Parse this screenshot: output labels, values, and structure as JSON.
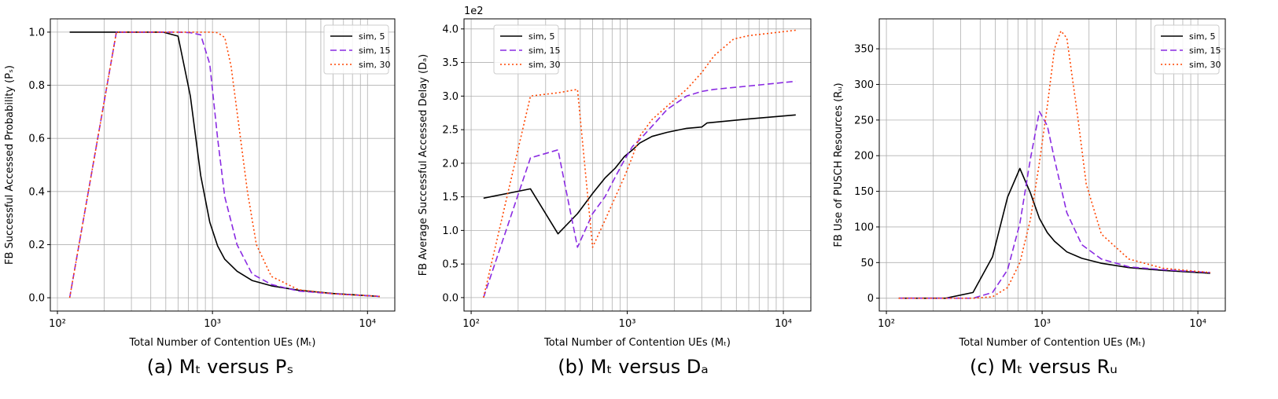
{
  "x_axis_label": "Total Number of Contention UEs (Mₜ)",
  "series_styles": {
    "sim, 5": {
      "color": "#000000",
      "dash": ""
    },
    "sim, 15": {
      "color": "#8a2be2",
      "dash": "8,4"
    },
    "sim, 30": {
      "color": "#ff4500",
      "dash": "2,3"
    }
  },
  "chart_data": [
    {
      "type": "line",
      "caption": "(a) Mₜ versus Pₛ",
      "xlabel": "Total Number of Contention UEs (Mₜ)",
      "ylabel": "FB Successful Accessed Probability (Pₛ)",
      "xscale": "log",
      "xlim": [
        90,
        15000
      ],
      "ylim": [
        -0.05,
        1.05
      ],
      "yticks": [
        0.0,
        0.2,
        0.4,
        0.6,
        0.8,
        1.0
      ],
      "ytick_labels": [
        "0.0",
        "0.2",
        "0.4",
        "0.6",
        "0.8",
        "1.0"
      ],
      "xtick_labels": [
        "10²",
        "10³",
        "10⁴"
      ],
      "legend_loc": "top-right",
      "grid": true,
      "series": [
        {
          "name": "sim, 5",
          "x": [
            120,
            240,
            360,
            480,
            600,
            720,
            840,
            960,
            1080,
            1200,
            1440,
            1800,
            2400,
            3600,
            6000,
            12000
          ],
          "y": [
            1.0,
            1.0,
            1.0,
            1.0,
            0.985,
            0.76,
            0.46,
            0.285,
            0.195,
            0.145,
            0.1,
            0.065,
            0.045,
            0.028,
            0.016,
            0.005
          ]
        },
        {
          "name": "sim, 15",
          "x": [
            120,
            240,
            360,
            480,
            600,
            720,
            840,
            960,
            1080,
            1200,
            1440,
            1800,
            2400,
            3600,
            6000,
            12000
          ],
          "y": [
            0.0,
            1.0,
            1.0,
            1.0,
            1.0,
            0.998,
            0.99,
            0.88,
            0.6,
            0.38,
            0.2,
            0.09,
            0.05,
            0.025,
            0.015,
            0.005
          ]
        },
        {
          "name": "sim, 30",
          "x": [
            120,
            240,
            360,
            480,
            600,
            720,
            840,
            960,
            1080,
            1200,
            1320,
            1440,
            1680,
            1920,
            2400,
            3600,
            6000,
            12000
          ],
          "y": [
            0.0,
            1.0,
            1.0,
            1.0,
            1.0,
            1.0,
            1.0,
            1.0,
            0.998,
            0.98,
            0.87,
            0.7,
            0.4,
            0.2,
            0.08,
            0.03,
            0.015,
            0.005
          ]
        }
      ]
    },
    {
      "type": "line",
      "caption": "(b) Mₜ versus Dₐ",
      "xlabel": "Total Number of Contention UEs (Mₜ)",
      "ylabel": "FB Average Successful Accessed Delay (Dₐ)",
      "sci_label": "1e2",
      "xscale": "log",
      "xlim": [
        90,
        15000
      ],
      "ylim": [
        -0.2,
        4.15
      ],
      "yticks": [
        0.0,
        0.5,
        1.0,
        1.5,
        2.0,
        2.5,
        3.0,
        3.5,
        4.0
      ],
      "ytick_labels": [
        "0.0",
        "0.5",
        "1.0",
        "1.5",
        "2.0",
        "2.5",
        "3.0",
        "3.5",
        "4.0"
      ],
      "xtick_labels": [
        "10²",
        "10³",
        "10⁴"
      ],
      "legend_loc": "top-left",
      "grid": true,
      "series": [
        {
          "name": "sim, 5",
          "x": [
            120,
            240,
            360,
            480,
            600,
            720,
            840,
            960,
            1080,
            1200,
            1440,
            1800,
            2400,
            3000,
            3240,
            6000,
            12000
          ],
          "y": [
            1.48,
            1.62,
            0.95,
            1.25,
            1.55,
            1.78,
            1.93,
            2.1,
            2.2,
            2.3,
            2.4,
            2.46,
            2.52,
            2.54,
            2.6,
            2.66,
            2.72
          ]
        },
        {
          "name": "sim, 15",
          "x": [
            120,
            240,
            360,
            480,
            600,
            720,
            840,
            960,
            1080,
            1200,
            1440,
            1800,
            2400,
            3000,
            3600,
            6000,
            12000
          ],
          "y": [
            0.0,
            2.08,
            2.2,
            0.75,
            1.25,
            1.5,
            1.8,
            2.05,
            2.25,
            2.35,
            2.55,
            2.8,
            3.0,
            3.07,
            3.1,
            3.15,
            3.22
          ]
        },
        {
          "name": "sim, 30",
          "x": [
            120,
            240,
            360,
            480,
            600,
            720,
            840,
            960,
            1080,
            1200,
            1440,
            1800,
            2400,
            3000,
            3600,
            4800,
            6000,
            12000
          ],
          "y": [
            0.0,
            3.0,
            3.05,
            3.1,
            0.75,
            1.15,
            1.5,
            1.8,
            2.1,
            2.4,
            2.65,
            2.85,
            3.1,
            3.35,
            3.6,
            3.85,
            3.9,
            3.98
          ]
        }
      ]
    },
    {
      "type": "line",
      "caption": "(c) Mₜ versus Rᵤ",
      "xlabel": "Total Number of Contention UEs (Mₜ)",
      "ylabel": "FB Use of PUSCH Resources (Rᵤ)",
      "xscale": "log",
      "xlim": [
        90,
        15000
      ],
      "ylim": [
        -18,
        392
      ],
      "yticks": [
        0,
        50,
        100,
        150,
        200,
        250,
        300,
        350
      ],
      "ytick_labels": [
        "0",
        "50",
        "100",
        "150",
        "200",
        "250",
        "300",
        "350"
      ],
      "xtick_labels": [
        "10²",
        "10³",
        "10⁴"
      ],
      "legend_loc": "top-right",
      "grid": true,
      "series": [
        {
          "name": "sim, 5",
          "x": [
            120,
            240,
            360,
            480,
            600,
            720,
            840,
            960,
            1080,
            1200,
            1440,
            1800,
            2400,
            3600,
            6000,
            12000
          ],
          "y": [
            0,
            0,
            8,
            58,
            142,
            182,
            148,
            112,
            92,
            80,
            65,
            56,
            49,
            43,
            39,
            35
          ]
        },
        {
          "name": "sim, 15",
          "x": [
            120,
            240,
            360,
            480,
            600,
            720,
            840,
            960,
            1080,
            1200,
            1440,
            1800,
            2400,
            3600,
            6000,
            12000
          ],
          "y": [
            0,
            0,
            0,
            8,
            40,
            105,
            195,
            262,
            242,
            195,
            120,
            75,
            55,
            44,
            40,
            36
          ]
        },
        {
          "name": "sim, 30",
          "x": [
            120,
            240,
            360,
            480,
            600,
            720,
            840,
            960,
            1080,
            1200,
            1320,
            1440,
            1680,
            1920,
            2400,
            3600,
            6000,
            12000
          ],
          "y": [
            0,
            0,
            0,
            2,
            15,
            50,
            110,
            190,
            270,
            350,
            375,
            365,
            260,
            160,
            90,
            55,
            42,
            36
          ]
        }
      ]
    }
  ]
}
